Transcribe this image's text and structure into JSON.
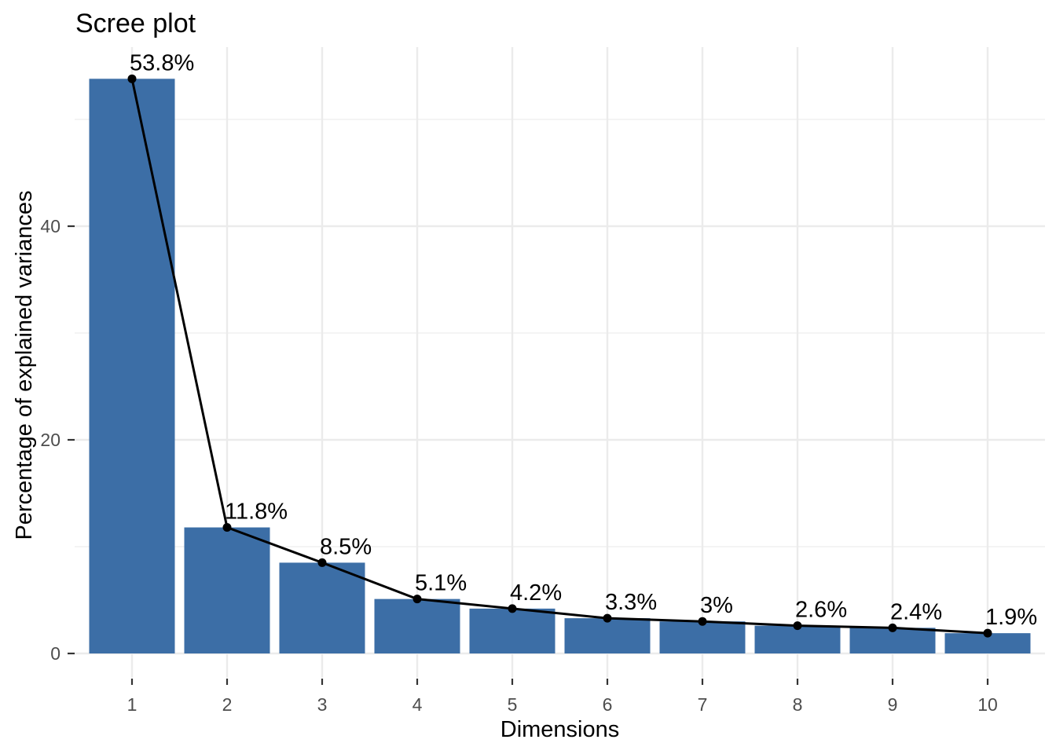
{
  "chart_data": {
    "type": "bar+line",
    "title": "Scree plot",
    "xlabel": "Dimensions",
    "ylabel": "Percentage of explained variances",
    "categories": [
      "1",
      "2",
      "3",
      "4",
      "5",
      "6",
      "7",
      "8",
      "9",
      "10"
    ],
    "values": [
      53.8,
      11.8,
      8.5,
      5.1,
      4.2,
      3.3,
      3.0,
      2.6,
      2.4,
      1.9
    ],
    "point_labels": [
      "53.8%",
      "11.8%",
      "8.5%",
      "5.1%",
      "4.2%",
      "3.3%",
      "3%",
      "2.6%",
      "2.4%",
      "1.9%"
    ],
    "ylim": [
      0,
      56.8
    ],
    "y_major_ticks": [
      0,
      20,
      40
    ],
    "y_minor_gridlines": [
      10,
      30,
      50
    ],
    "grid": "horizontal major+minor, vertical major at each category",
    "legend": "none",
    "colors": {
      "bar_fill": "#3C6EA6",
      "line": "#000000",
      "point": "#000000",
      "grid_major": "#EBEBEB",
      "grid_minor": "#F1F1F1",
      "tick_mark": "#333333",
      "tick_label": "#4D4D4D",
      "title": "#000000",
      "axis_title": "#000000",
      "background": "#FFFFFF"
    }
  }
}
